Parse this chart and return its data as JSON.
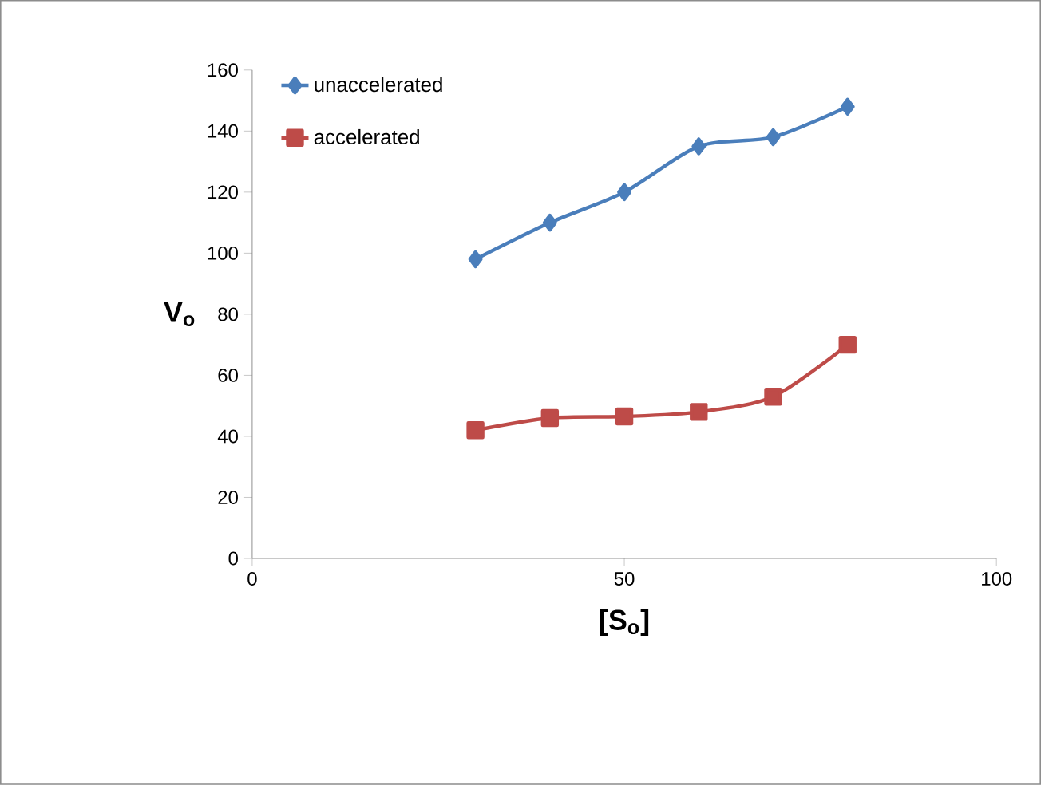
{
  "chart_data": {
    "type": "line",
    "xlabel": "[S$_{o}$]",
    "ylabel": "V$_{o}$",
    "x": [
      30,
      40,
      50,
      60,
      70,
      80
    ],
    "series": [
      {
        "name": "unaccelerated",
        "color": "#4a7ebb",
        "marker": "diamond",
        "values": [
          98,
          110,
          120,
          135,
          138,
          148
        ]
      },
      {
        "name": "accelerated",
        "color": "#be4b48",
        "marker": "square",
        "values": [
          42,
          46,
          46.5,
          48,
          53,
          70
        ]
      }
    ],
    "xlim": [
      0,
      100
    ],
    "xticks": [
      0,
      50,
      100
    ],
    "ylim": [
      0,
      160
    ],
    "yticks": [
      0,
      20,
      40,
      60,
      80,
      100,
      120,
      140,
      160
    ],
    "legend": "top left",
    "grid": false,
    "line_style": "solid"
  }
}
